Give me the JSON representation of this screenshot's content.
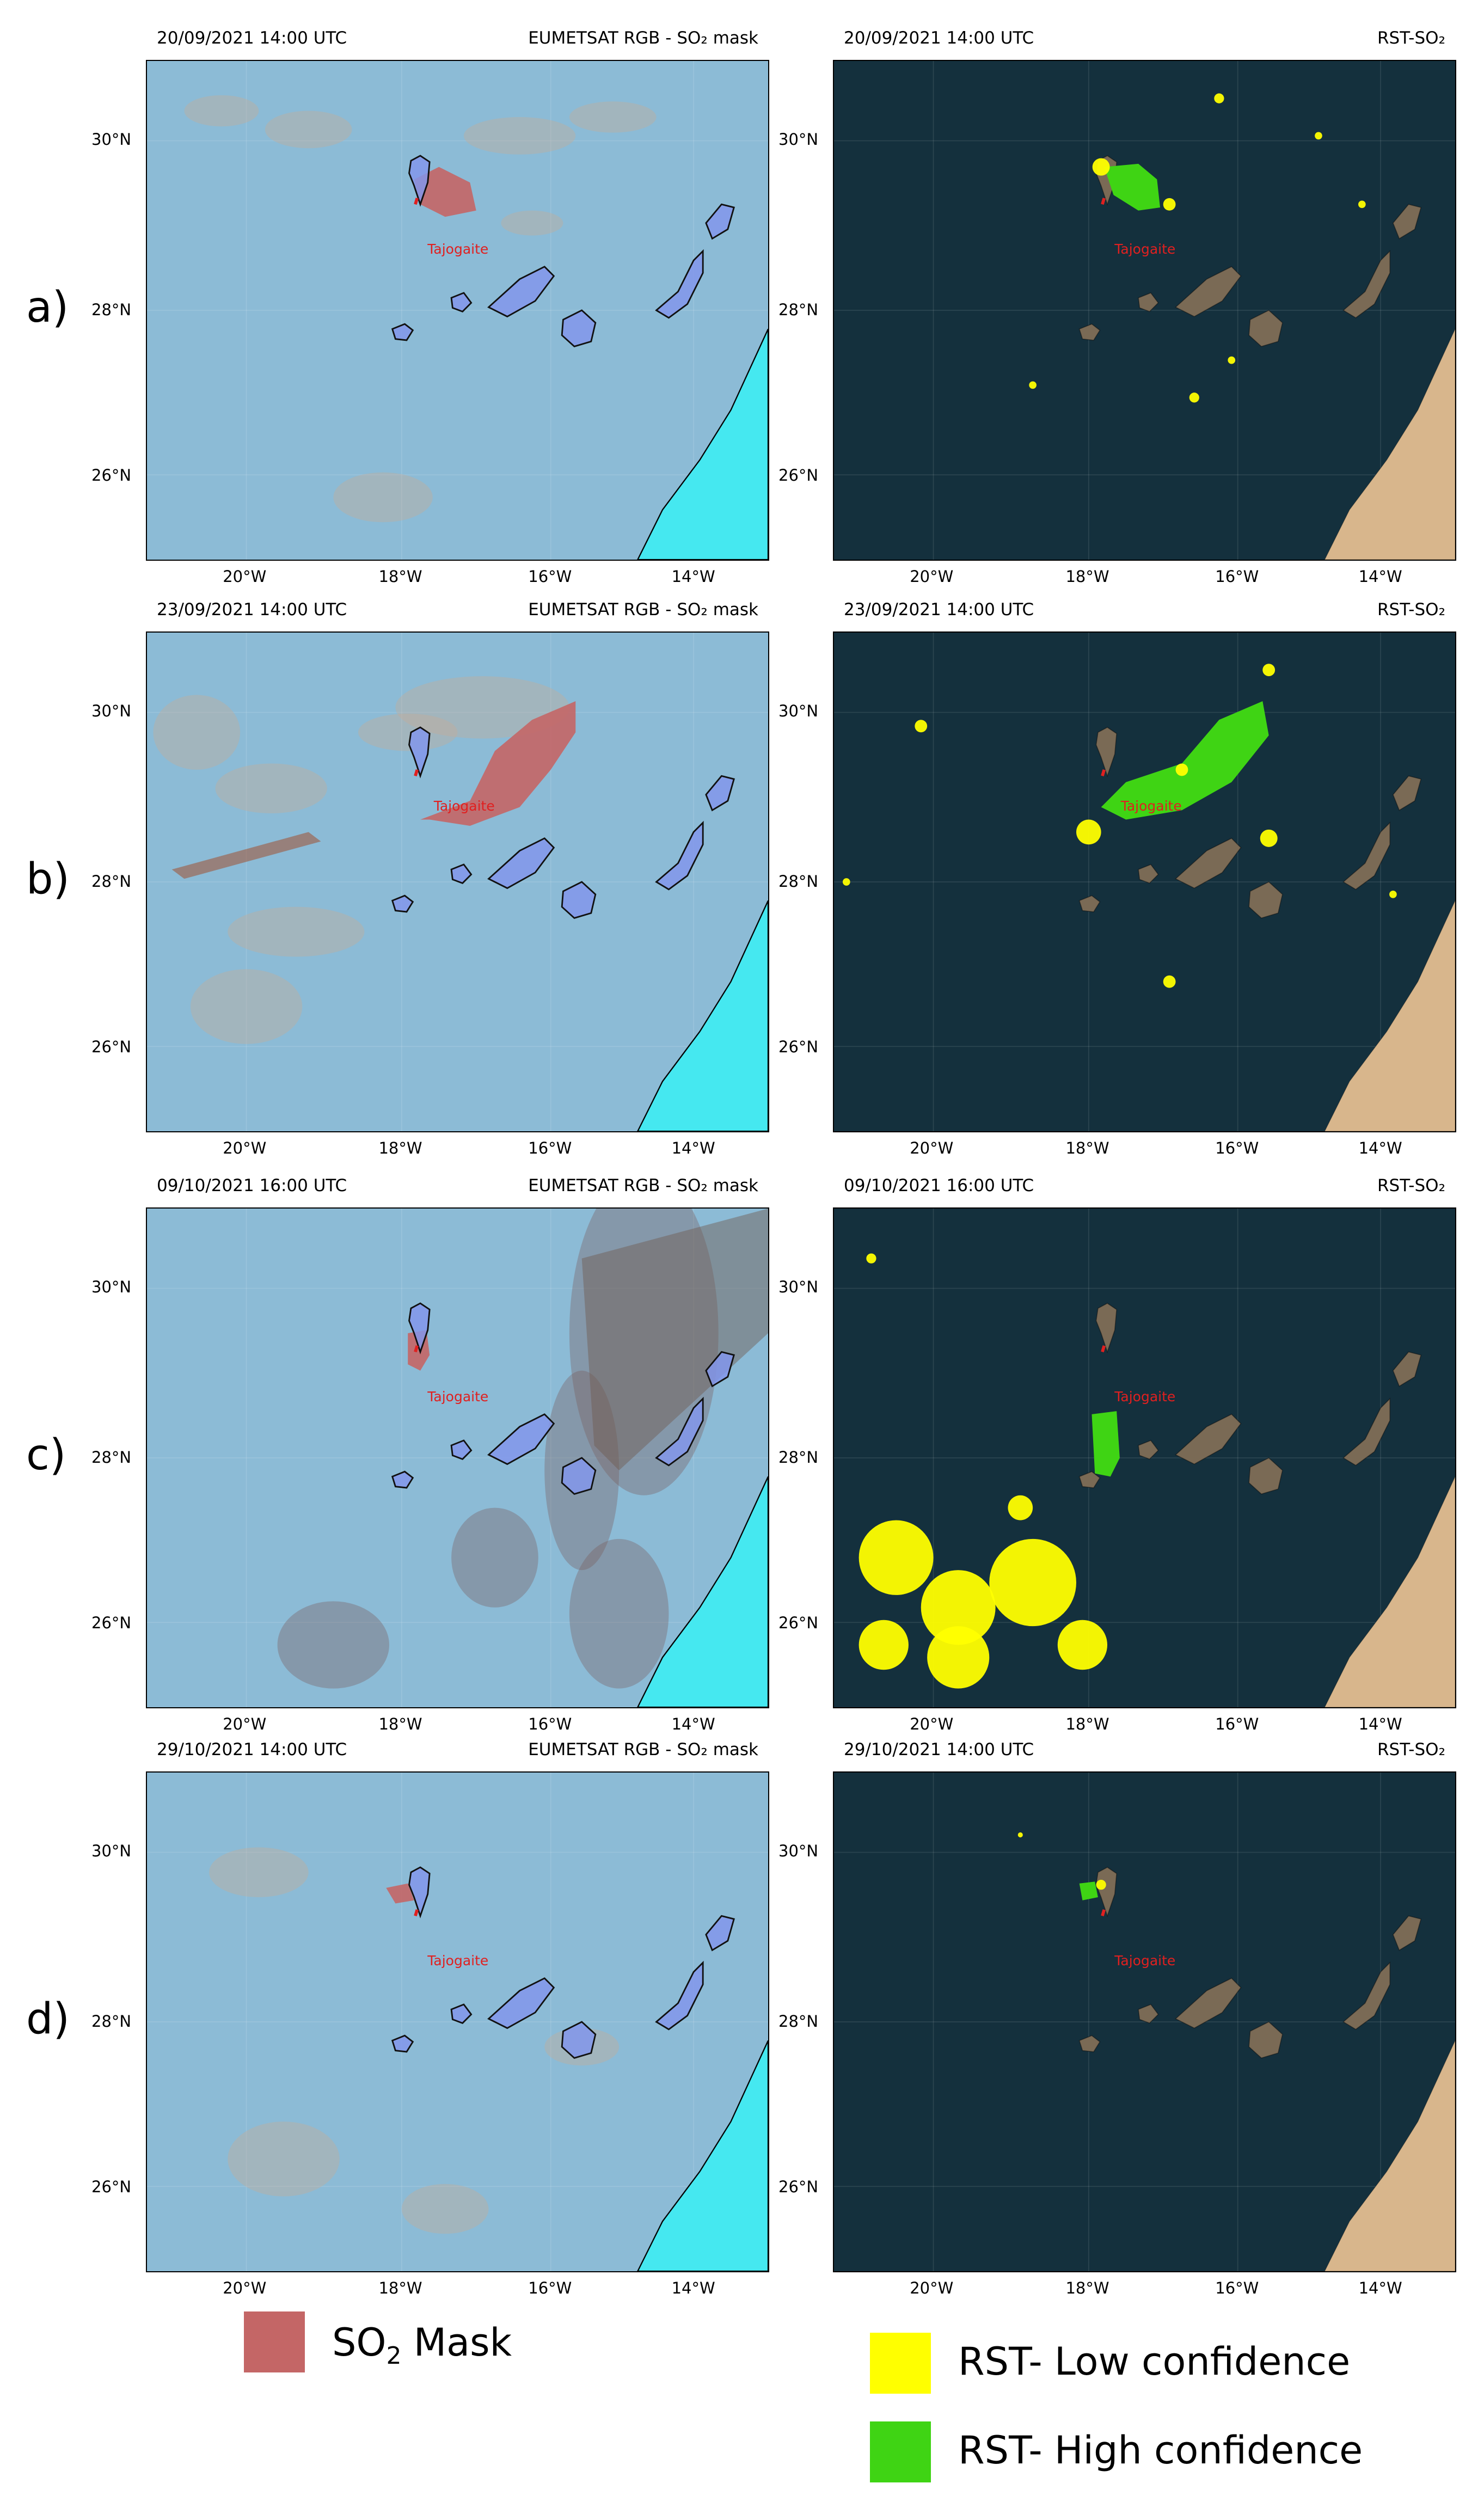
{
  "panel_titles": {
    "left": "EUMETSAT RGB - SO₂ mask",
    "right": "RST-SO₂"
  },
  "volcano_label": "Tajogaite",
  "lon_ticks": [
    "20°W",
    "18°W",
    "16°W",
    "14°W"
  ],
  "lat_ticks": [
    "30°N",
    "28°N",
    "26°N"
  ],
  "rows": [
    {
      "label": "a)",
      "timestamp": "20/09/2021 14:00 UTC"
    },
    {
      "label": "b)",
      "timestamp": "23/09/2021 14:00 UTC"
    },
    {
      "label": "c)",
      "timestamp": "09/10/2021 16:00 UTC"
    },
    {
      "label": "d)",
      "timestamp": "29/10/2021 14:00 UTC"
    }
  ],
  "legend": {
    "so2_mask": {
      "text": "SO",
      "sub": "2",
      "suffix": " Mask",
      "color": "#c46666"
    },
    "low_conf": {
      "text": "RST- Low confidence",
      "color": "#ffff00"
    },
    "high_conf": {
      "text": "RST- High confidence",
      "color": "#3fd414"
    }
  },
  "colors": {
    "rgb_background": "#8cbbd6",
    "rst_background": "#14303d",
    "africa_coast_rgb": "#45e8f0",
    "africa_land_rst": "#d8b68c",
    "volcano_label": "#e02020"
  }
}
